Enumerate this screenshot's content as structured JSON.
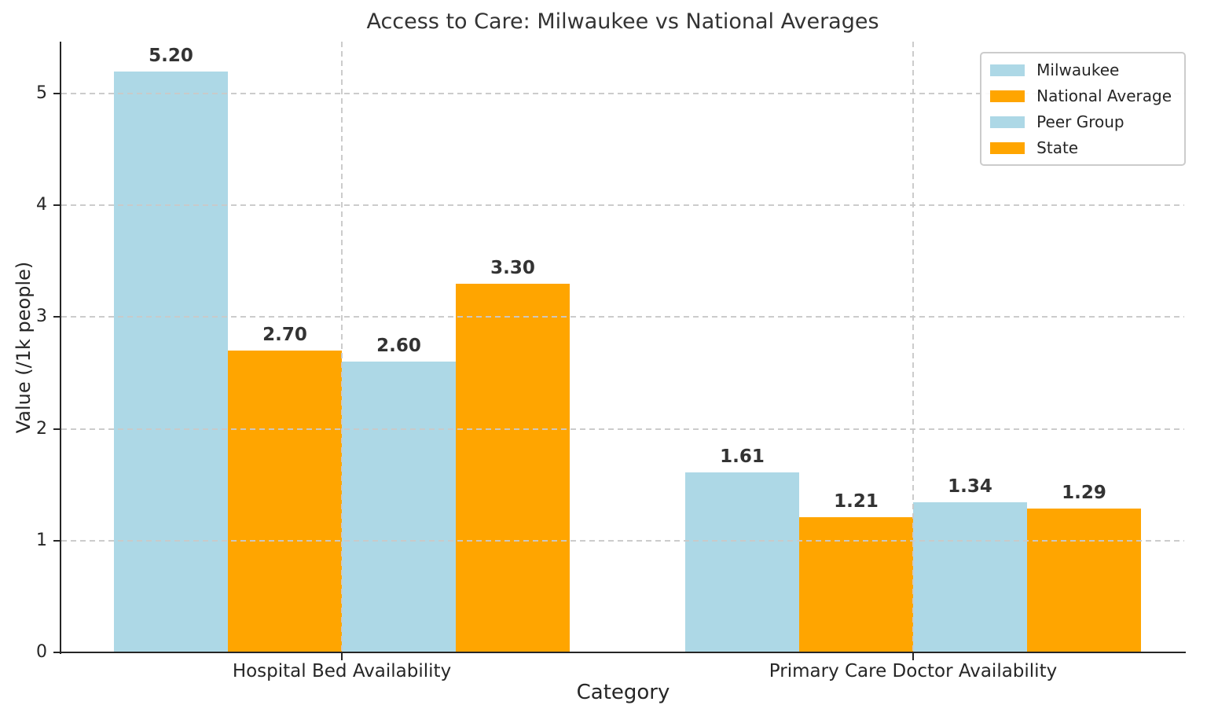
{
  "chart_data": {
    "type": "bar",
    "title": "Access to Care: Milwaukee vs National Averages",
    "xlabel": "Category",
    "ylabel": "Value (/1k people)",
    "categories": [
      "Hospital Bed Availability",
      "Primary Care Doctor Availability"
    ],
    "series": [
      {
        "name": "Milwaukee",
        "color": "#ADD8E6",
        "values": [
          5.2,
          1.61
        ]
      },
      {
        "name": "National Average",
        "color": "#FFA500",
        "values": [
          2.7,
          1.21
        ]
      },
      {
        "name": "Peer Group",
        "color": "#ADD8E6",
        "values": [
          2.6,
          1.34
        ]
      },
      {
        "name": "State",
        "color": "#FFA500",
        "values": [
          3.3,
          1.29
        ]
      }
    ],
    "value_label_decimals": 2,
    "ylim": [
      0,
      5.465
    ],
    "yticks": [
      0,
      1,
      2,
      3,
      4,
      5
    ],
    "grid": true,
    "grid_style": "dashed",
    "grid_color": "#c9c9c9",
    "legend_position": "upper right",
    "text_color": "#333333",
    "axis_color": "#262626"
  }
}
